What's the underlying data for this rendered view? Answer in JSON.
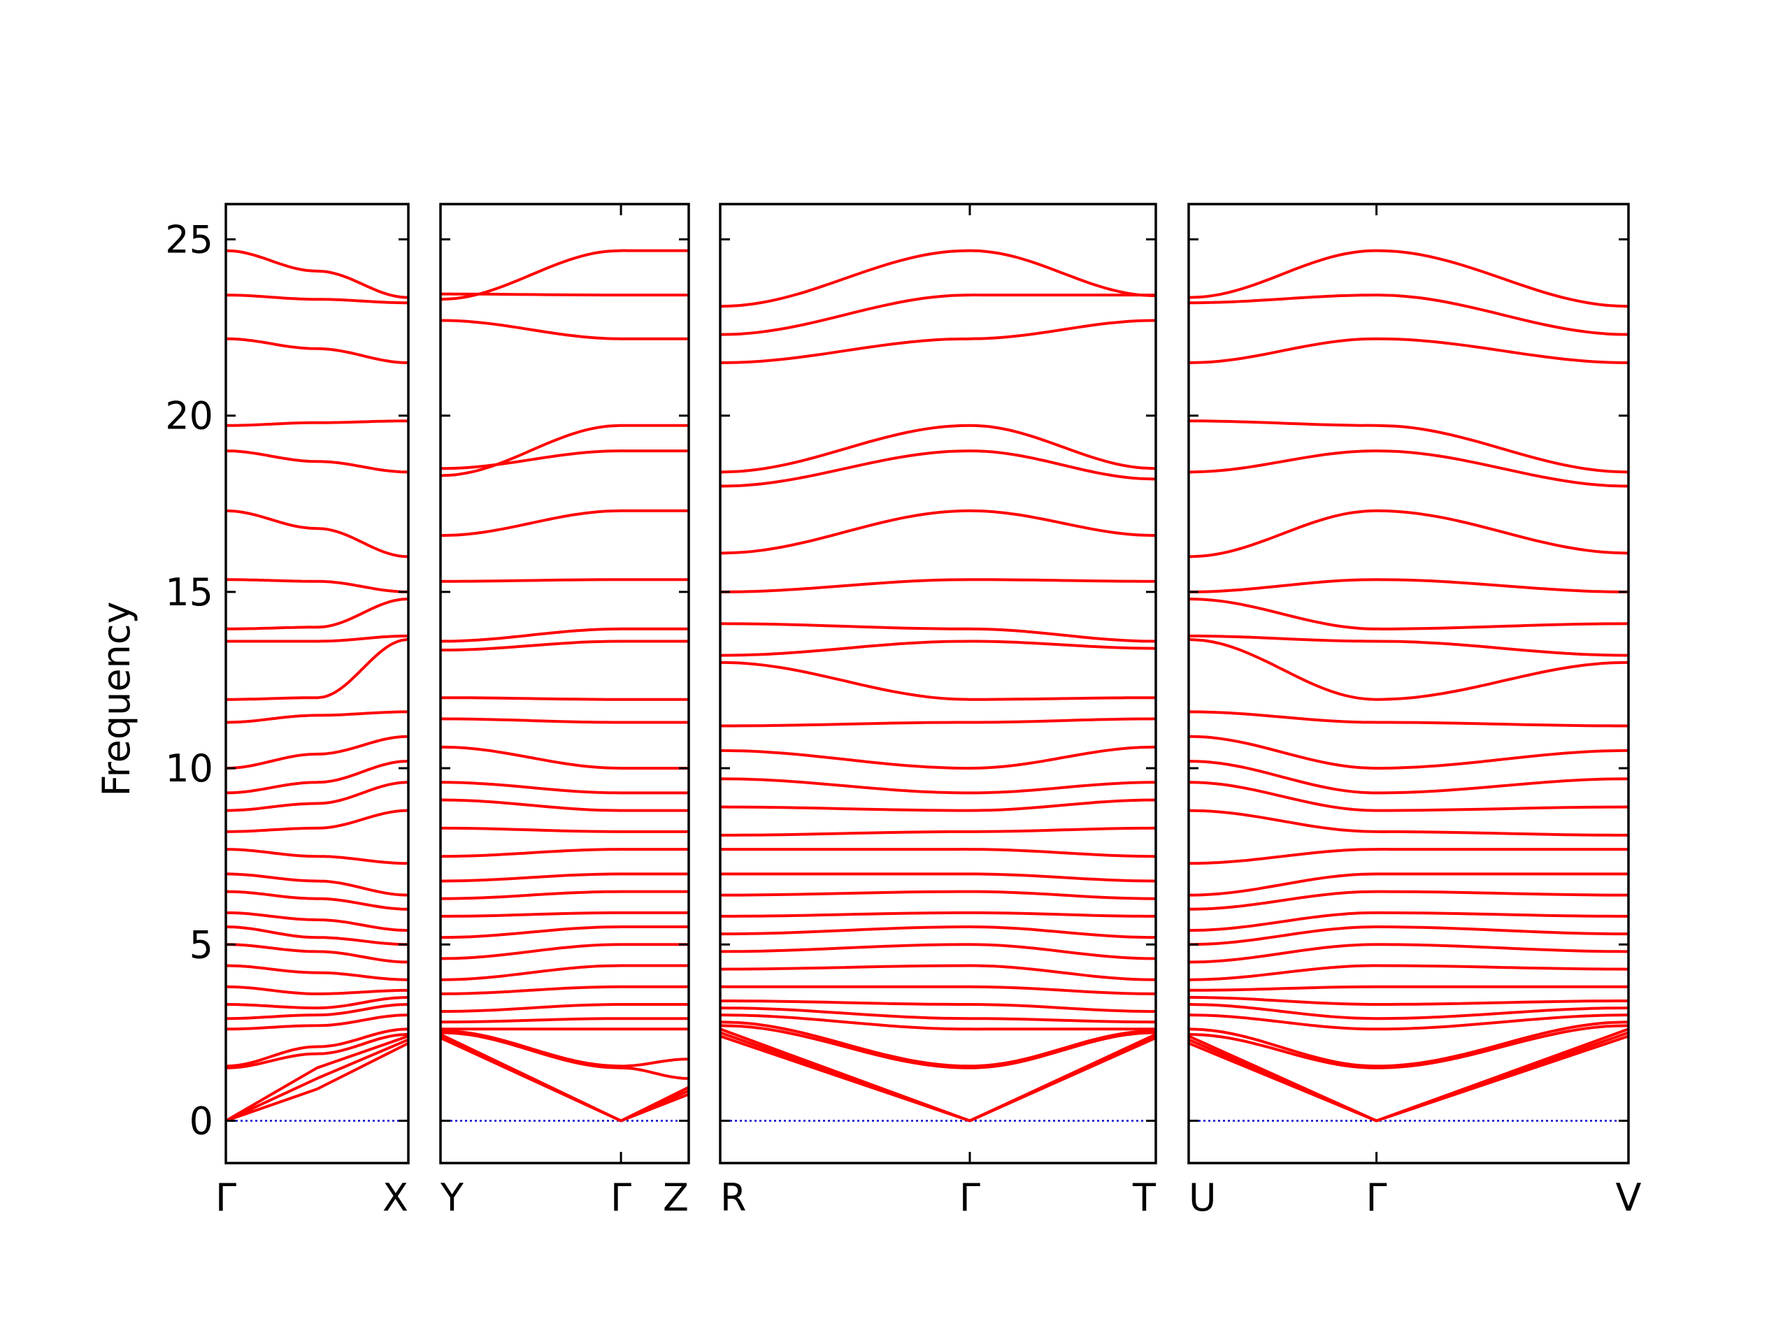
{
  "chart_data": {
    "type": "line",
    "title": "",
    "ylabel": "Frequency",
    "xlabel": "",
    "ylim": [
      -1.2,
      26
    ],
    "yticks": [
      0,
      5,
      10,
      15,
      20,
      25
    ],
    "ytick_labels": [
      "0",
      "5",
      "10",
      "15",
      "20",
      "25"
    ],
    "band_color": "#ff0000",
    "zero_line_color": "#0000cc",
    "panels": [
      {
        "segment": "Γ–X",
        "ticks": [
          {
            "t": 0,
            "label": "Γ"
          },
          {
            "t": 1,
            "label": "X"
          }
        ],
        "gamma_at": 0,
        "x": [
          0,
          0.5,
          1
        ],
        "bands": [
          [
            24.68,
            24.1,
            23.35
          ],
          [
            23.42,
            23.3,
            23.2
          ],
          [
            22.18,
            21.9,
            21.5
          ],
          [
            19.72,
            19.8,
            19.85
          ],
          [
            19.0,
            18.7,
            18.4
          ],
          [
            17.3,
            16.8,
            16.0
          ],
          [
            15.35,
            15.3,
            15.0
          ],
          [
            13.95,
            14.0,
            14.8
          ],
          [
            13.6,
            13.6,
            13.75
          ],
          [
            11.95,
            12.0,
            13.65
          ],
          [
            11.3,
            11.5,
            11.6
          ],
          [
            10.0,
            10.4,
            10.9
          ],
          [
            9.3,
            9.6,
            10.2
          ],
          [
            8.8,
            9.0,
            9.6
          ],
          [
            8.2,
            8.3,
            8.8
          ],
          [
            7.7,
            7.5,
            7.3
          ],
          [
            7.0,
            6.8,
            6.4
          ],
          [
            6.5,
            6.3,
            6.0
          ],
          [
            5.9,
            5.7,
            5.4
          ],
          [
            5.5,
            5.2,
            5.0
          ],
          [
            5.0,
            4.8,
            4.5
          ],
          [
            4.4,
            4.2,
            4.0
          ],
          [
            3.8,
            3.6,
            3.7
          ],
          [
            3.3,
            3.2,
            3.5
          ],
          [
            2.9,
            3.0,
            3.3
          ],
          [
            2.6,
            2.7,
            3.0
          ],
          [
            1.55,
            2.1,
            2.6
          ],
          [
            1.5,
            1.9,
            2.45
          ],
          [
            0.0,
            1.5,
            2.4
          ],
          [
            0.0,
            1.2,
            2.3
          ],
          [
            0.0,
            0.9,
            2.2
          ]
        ]
      },
      {
        "segment": "Y–Γ–Z",
        "ticks": [
          {
            "t": 0,
            "label": "Y"
          },
          {
            "t": 0.727,
            "label": "Γ"
          },
          {
            "t": 1,
            "label": "Z"
          }
        ],
        "gamma_at": 0.727,
        "x": [
          0,
          0.727,
          1
        ],
        "bands": [
          [
            23.3,
            24.68,
            24.68
          ],
          [
            23.45,
            23.42,
            23.42
          ],
          [
            22.7,
            22.18,
            22.18
          ],
          [
            18.3,
            19.72,
            19.72
          ],
          [
            18.5,
            19.0,
            19.0
          ],
          [
            16.6,
            17.3,
            17.3
          ],
          [
            15.3,
            15.35,
            15.35
          ],
          [
            13.6,
            13.95,
            13.95
          ],
          [
            13.35,
            13.6,
            13.6
          ],
          [
            12.0,
            11.95,
            11.95
          ],
          [
            11.4,
            11.3,
            11.3
          ],
          [
            10.6,
            10.0,
            10.0
          ],
          [
            9.6,
            9.3,
            9.3
          ],
          [
            9.1,
            8.8,
            8.8
          ],
          [
            8.3,
            8.2,
            8.2
          ],
          [
            7.5,
            7.7,
            7.7
          ],
          [
            6.8,
            7.0,
            7.0
          ],
          [
            6.3,
            6.5,
            6.5
          ],
          [
            5.8,
            5.9,
            5.9
          ],
          [
            5.2,
            5.5,
            5.5
          ],
          [
            4.6,
            5.0,
            5.0
          ],
          [
            4.0,
            4.4,
            4.4
          ],
          [
            3.6,
            3.8,
            3.8
          ],
          [
            3.1,
            3.3,
            3.3
          ],
          [
            2.8,
            2.9,
            2.9
          ],
          [
            2.6,
            2.6,
            2.6
          ],
          [
            2.55,
            1.55,
            1.75
          ],
          [
            2.5,
            1.5,
            1.2
          ],
          [
            2.45,
            0.0,
            0.95
          ],
          [
            2.4,
            0.0,
            0.85
          ],
          [
            2.35,
            0.0,
            0.75
          ]
        ]
      },
      {
        "segment": "R–Γ–T",
        "ticks": [
          {
            "t": 0,
            "label": "R"
          },
          {
            "t": 0.573,
            "label": "Γ"
          },
          {
            "t": 1,
            "label": "T"
          }
        ],
        "gamma_at": 0.573,
        "x": [
          0,
          0.573,
          1
        ],
        "bands": [
          [
            23.1,
            24.68,
            23.4
          ],
          [
            22.3,
            23.42,
            23.42
          ],
          [
            21.5,
            22.18,
            22.7
          ],
          [
            18.4,
            19.72,
            18.5
          ],
          [
            18.0,
            19.0,
            18.2
          ],
          [
            16.1,
            17.3,
            16.6
          ],
          [
            15.0,
            15.35,
            15.3
          ],
          [
            14.1,
            13.95,
            13.6
          ],
          [
            13.2,
            13.6,
            13.4
          ],
          [
            13.0,
            11.95,
            12.0
          ],
          [
            11.2,
            11.3,
            11.4
          ],
          [
            10.5,
            10.0,
            10.6
          ],
          [
            9.7,
            9.3,
            9.6
          ],
          [
            8.9,
            8.8,
            9.1
          ],
          [
            8.1,
            8.2,
            8.3
          ],
          [
            7.7,
            7.7,
            7.5
          ],
          [
            7.0,
            7.0,
            6.8
          ],
          [
            6.4,
            6.5,
            6.3
          ],
          [
            5.8,
            5.9,
            5.8
          ],
          [
            5.3,
            5.5,
            5.2
          ],
          [
            4.8,
            5.0,
            4.6
          ],
          [
            4.3,
            4.4,
            4.0
          ],
          [
            3.8,
            3.8,
            3.6
          ],
          [
            3.4,
            3.3,
            3.1
          ],
          [
            3.2,
            2.9,
            2.8
          ],
          [
            3.0,
            2.6,
            2.6
          ],
          [
            2.8,
            1.55,
            2.55
          ],
          [
            2.7,
            1.5,
            2.5
          ],
          [
            2.6,
            0.0,
            2.45
          ],
          [
            2.5,
            0.0,
            2.4
          ],
          [
            2.4,
            0.0,
            2.35
          ]
        ]
      },
      {
        "segment": "U–Γ–V",
        "ticks": [
          {
            "t": 0,
            "label": "U"
          },
          {
            "t": 0.427,
            "label": "Γ"
          },
          {
            "t": 1,
            "label": "V"
          }
        ],
        "gamma_at": 0.427,
        "x": [
          0,
          0.427,
          1
        ],
        "bands": [
          [
            23.35,
            24.68,
            23.1
          ],
          [
            23.2,
            23.42,
            22.3
          ],
          [
            21.5,
            22.18,
            21.5
          ],
          [
            19.85,
            19.72,
            18.4
          ],
          [
            18.4,
            19.0,
            18.0
          ],
          [
            16.0,
            17.3,
            16.1
          ],
          [
            15.0,
            15.35,
            15.0
          ],
          [
            14.8,
            13.95,
            14.1
          ],
          [
            13.75,
            13.6,
            13.2
          ],
          [
            13.65,
            11.95,
            13.0
          ],
          [
            11.6,
            11.3,
            11.2
          ],
          [
            10.9,
            10.0,
            10.5
          ],
          [
            10.2,
            9.3,
            9.7
          ],
          [
            9.6,
            8.8,
            8.9
          ],
          [
            8.8,
            8.2,
            8.1
          ],
          [
            7.3,
            7.7,
            7.7
          ],
          [
            6.4,
            7.0,
            7.0
          ],
          [
            6.0,
            6.5,
            6.4
          ],
          [
            5.4,
            5.9,
            5.8
          ],
          [
            5.0,
            5.5,
            5.3
          ],
          [
            4.5,
            5.0,
            4.8
          ],
          [
            4.0,
            4.4,
            4.3
          ],
          [
            3.7,
            3.8,
            3.8
          ],
          [
            3.5,
            3.3,
            3.4
          ],
          [
            3.3,
            2.9,
            3.2
          ],
          [
            3.0,
            2.6,
            3.0
          ],
          [
            2.6,
            1.55,
            2.8
          ],
          [
            2.45,
            1.5,
            2.7
          ],
          [
            2.4,
            0.0,
            2.6
          ],
          [
            2.3,
            0.0,
            2.5
          ],
          [
            2.2,
            0.0,
            2.4
          ]
        ]
      }
    ]
  }
}
